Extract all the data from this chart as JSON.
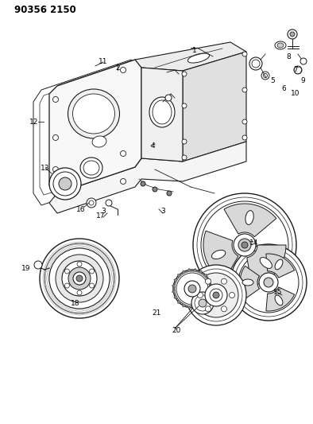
{
  "title": "90356 2150",
  "bg_color": "#ffffff",
  "lc": "#1a1a1a",
  "fig_width": 3.94,
  "fig_height": 5.33,
  "dpi": 100,
  "part_labels": [
    [
      245,
      470,
      "1"
    ],
    [
      148,
      448,
      "2"
    ],
    [
      205,
      268,
      "3"
    ],
    [
      130,
      268,
      "3"
    ],
    [
      192,
      350,
      "4"
    ],
    [
      363,
      462,
      "8"
    ],
    [
      372,
      445,
      "7"
    ],
    [
      343,
      432,
      "5"
    ],
    [
      357,
      422,
      "6"
    ],
    [
      381,
      432,
      "9"
    ],
    [
      372,
      415,
      "10"
    ],
    [
      130,
      456,
      "11"
    ],
    [
      43,
      380,
      "12"
    ],
    [
      57,
      322,
      "13"
    ],
    [
      320,
      228,
      "14"
    ],
    [
      350,
      165,
      "15"
    ],
    [
      102,
      270,
      "16"
    ],
    [
      127,
      262,
      "17"
    ],
    [
      95,
      152,
      "18"
    ],
    [
      33,
      195,
      "19"
    ],
    [
      222,
      118,
      "20"
    ],
    [
      197,
      140,
      "21"
    ]
  ]
}
